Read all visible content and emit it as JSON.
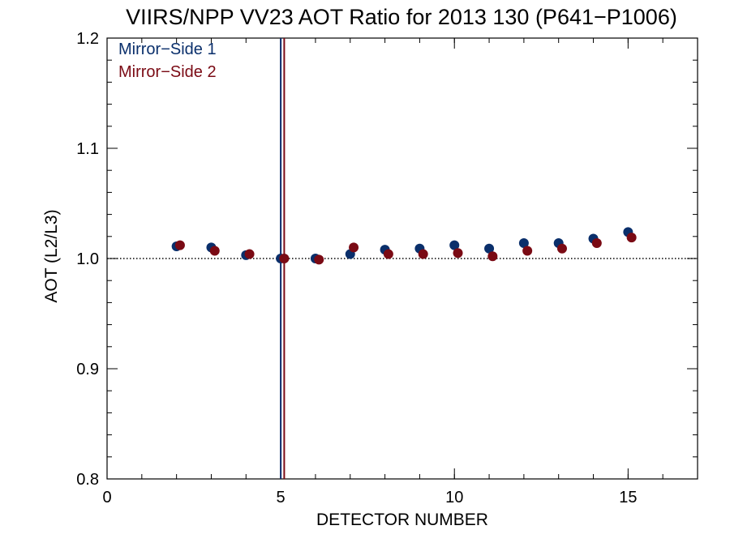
{
  "chart_data": {
    "type": "scatter",
    "title": "VIIRS/NPP VV23 AOT Ratio for 2013 130 (P641−P1006)",
    "xlabel": "DETECTOR NUMBER",
    "ylabel": "AOT (L2/L3)",
    "xlim": [
      0,
      17
    ],
    "ylim": [
      0.8,
      1.2
    ],
    "x_ticks": [
      0,
      5,
      10,
      15
    ],
    "y_ticks": [
      0.8,
      0.9,
      1.0,
      1.1,
      1.2
    ],
    "x_tick_labels": [
      "0",
      "5",
      "10",
      "15"
    ],
    "y_tick_labels": [
      "0.8",
      "0.9",
      "1.0",
      "1.1",
      "1.2"
    ],
    "x_minor_step": 1,
    "y_minor_step": 0.02,
    "reference_line": {
      "y": 1.0,
      "style": "dotted"
    },
    "vertical_lines": [
      {
        "x": 5.0,
        "color": "#0a2a6b"
      },
      {
        "x": 5.1,
        "color": "#7a0a14"
      }
    ],
    "legend_position": "top-left",
    "series": [
      {
        "name": "Mirror−Side 1",
        "color": "#0a2f6b",
        "x": [
          2,
          3,
          4,
          5,
          6,
          7,
          8,
          9,
          10,
          11,
          12,
          13,
          14,
          15
        ],
        "y": [
          1.011,
          1.01,
          1.003,
          1.0,
          1.0,
          1.004,
          1.008,
          1.009,
          1.012,
          1.009,
          1.014,
          1.014,
          1.018,
          1.024
        ]
      },
      {
        "name": "Mirror−Side 2",
        "color": "#7a0a14",
        "x": [
          2.1,
          3.1,
          4.1,
          5.1,
          6.1,
          7.1,
          8.1,
          9.1,
          10.1,
          11.1,
          12.1,
          13.1,
          14.1,
          15.1
        ],
        "y": [
          1.012,
          1.007,
          1.004,
          1.0,
          0.999,
          1.01,
          1.004,
          1.004,
          1.005,
          1.002,
          1.007,
          1.009,
          1.014,
          1.019
        ]
      }
    ]
  }
}
